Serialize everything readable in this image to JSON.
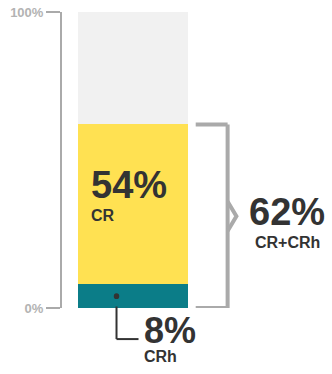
{
  "chart_data": {
    "type": "bar",
    "stacked": true,
    "data_labels": true,
    "tick_labels": "y",
    "grid": false,
    "categories": [
      null
    ],
    "series": [
      {
        "name": "CRh",
        "color": "#0b7d88",
        "values": [
          8
        ],
        "value_labels": [
          "8%"
        ]
      },
      {
        "name": "CR",
        "color": "#ffe152",
        "values": [
          54
        ],
        "value_labels": [
          "54%"
        ]
      }
    ],
    "ylim": [
      0,
      100
    ],
    "yticks": [
      {
        "value": 0,
        "label": "0%"
      },
      {
        "value": 100,
        "label": "100%"
      }
    ],
    "annotations": [
      {
        "value": 62,
        "label": "62%",
        "text": "CR+CRh"
      }
    ]
  }
}
